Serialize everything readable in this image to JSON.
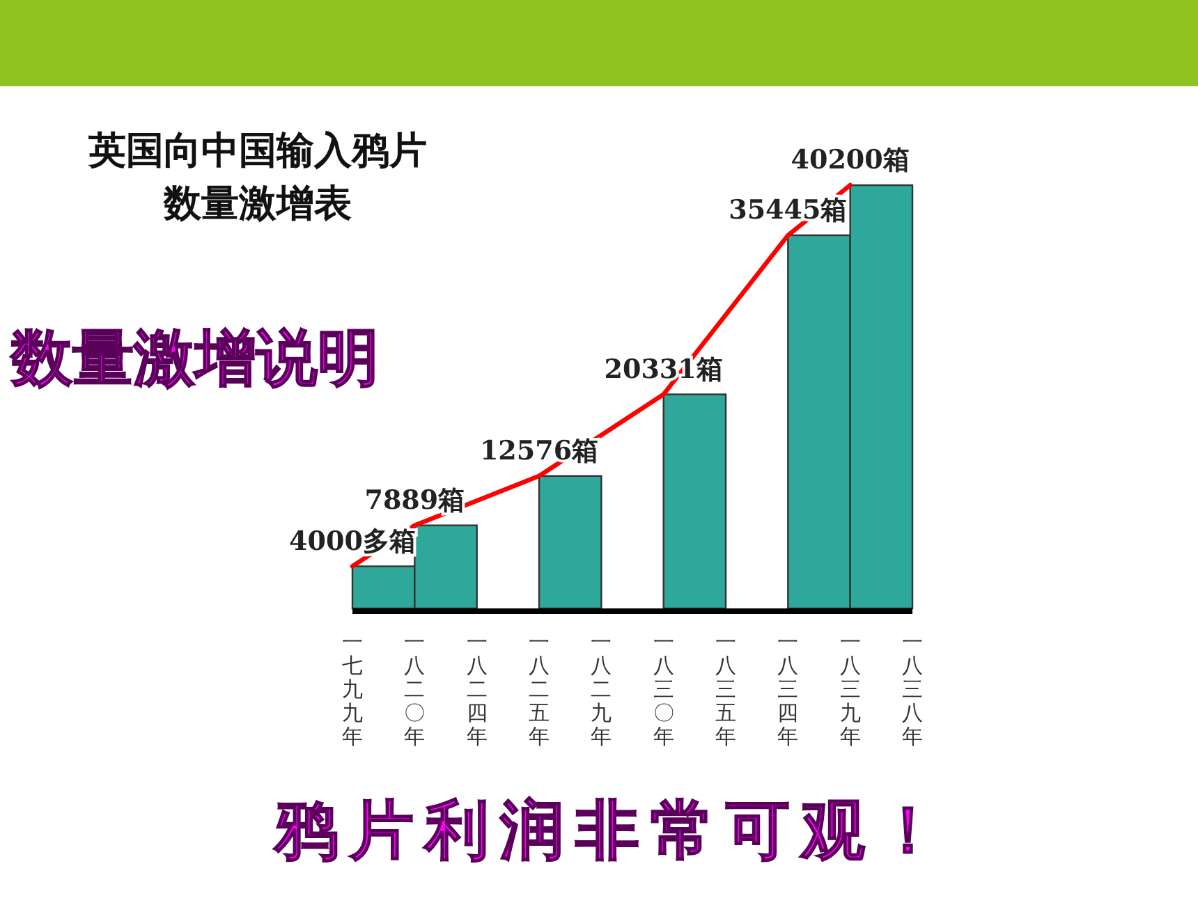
{
  "chart_data": {
    "type": "bar",
    "title": "英国向中国输入鸦片数量激增表",
    "categories": [
      "一七九九年",
      "一八二〇年",
      "一八二四年",
      "一八二五年",
      "一八二九年",
      "一八三〇年",
      "一八三五年",
      "一八三四年",
      "一八三九年",
      "一八三八年"
    ],
    "series": [
      {
        "color": "#2fa89c",
        "values": [
          4000,
          7889,
          null,
          12576,
          null,
          20331,
          null,
          35445,
          40200,
          null
        ],
        "value_labels": [
          "4000多箱",
          "7889箱",
          null,
          "12576箱",
          null,
          "20331箱",
          null,
          "35445箱",
          "40200箱",
          null
        ]
      },
      {
        "type": "line",
        "color": "#ff0000",
        "values": [
          4000,
          7889,
          null,
          12576,
          null,
          20331,
          null,
          35445,
          40200,
          null
        ]
      }
    ],
    "annotations": [
      "数量激增说明",
      "鸦片利润非常可观！"
    ]
  }
}
